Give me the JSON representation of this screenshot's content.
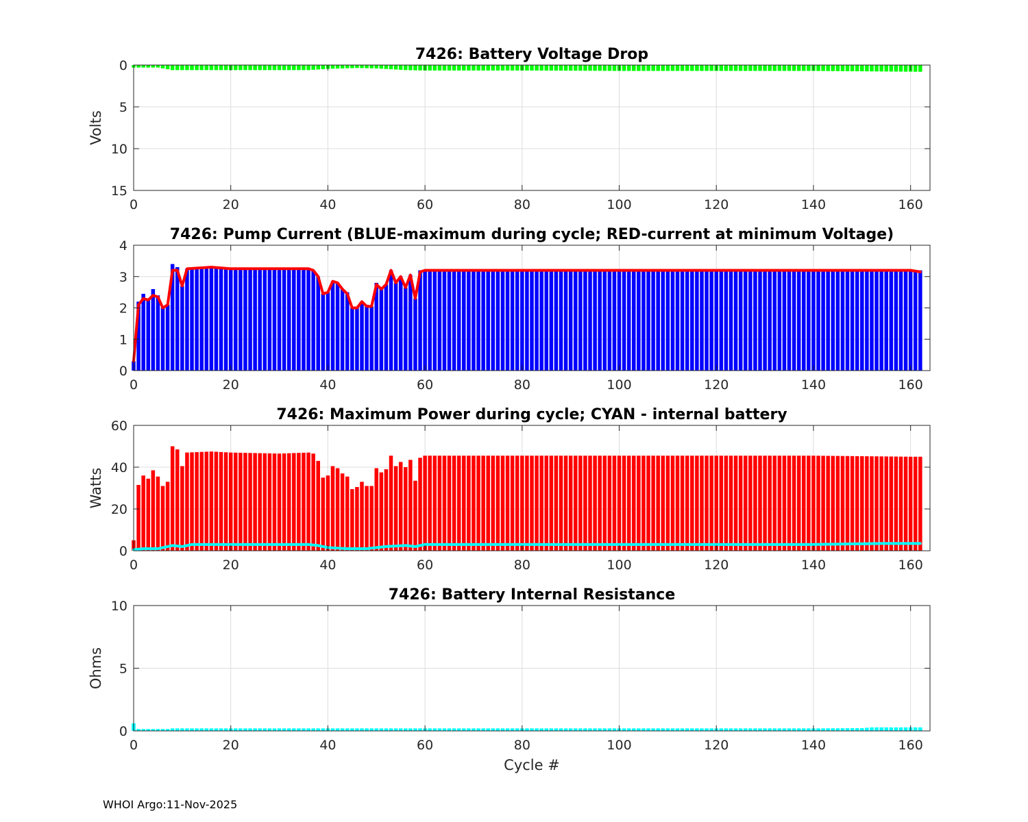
{
  "footer": "WHOI Argo:11-Nov-2025",
  "chart_data": [
    {
      "type": "bar",
      "title": "7426: Battery Voltage Drop",
      "xlabel": "",
      "ylabel": "Volts",
      "xlim": [
        0,
        164
      ],
      "ylim": [
        0,
        15
      ],
      "y_reversed": true,
      "xticks": [
        0,
        20,
        40,
        60,
        80,
        100,
        120,
        140,
        160
      ],
      "yticks": [
        0,
        5,
        10,
        15
      ],
      "grid": true,
      "colors": {
        "bars": "#00ff00"
      },
      "series": [
        {
          "kind": "bar",
          "color": "#00ff00",
          "points": [
            [
              0,
              0.3
            ],
            [
              5,
              0.3
            ],
            [
              8,
              0.6
            ],
            [
              10,
              0.6
            ],
            [
              20,
              0.6
            ],
            [
              30,
              0.6
            ],
            [
              36,
              0.6
            ],
            [
              40,
              0.45
            ],
            [
              46,
              0.35
            ],
            [
              50,
              0.4
            ],
            [
              56,
              0.6
            ],
            [
              60,
              0.65
            ],
            [
              80,
              0.65
            ],
            [
              100,
              0.7
            ],
            [
              120,
              0.7
            ],
            [
              140,
              0.7
            ],
            [
              162,
              0.8
            ]
          ]
        }
      ]
    },
    {
      "type": "bar",
      "title": "7426: Pump Current (BLUE-maximum during cycle; RED-current at minimum Voltage)",
      "xlabel": "",
      "ylabel": "",
      "xlim": [
        0,
        164
      ],
      "ylim": [
        0,
        4
      ],
      "xticks": [
        0,
        20,
        40,
        60,
        80,
        100,
        120,
        140,
        160
      ],
      "yticks": [
        0,
        1,
        2,
        3,
        4
      ],
      "grid": true,
      "colors": {
        "bars": "#0000ff",
        "line": "#ff0000"
      },
      "series": [
        {
          "kind": "bar",
          "name": "BLUE-maximum during cycle",
          "color": "#0000ff",
          "points": [
            [
              0,
              0.3
            ],
            [
              1,
              2.2
            ],
            [
              2,
              2.45
            ],
            [
              3,
              2.3
            ],
            [
              4,
              2.6
            ],
            [
              5,
              2.4
            ],
            [
              6,
              2.0
            ],
            [
              7,
              2.1
            ],
            [
              8,
              3.4
            ],
            [
              9,
              3.3
            ],
            [
              10,
              2.7
            ],
            [
              11,
              3.25
            ],
            [
              15,
              3.25
            ],
            [
              16,
              3.3
            ],
            [
              20,
              3.25
            ],
            [
              30,
              3.25
            ],
            [
              35,
              3.25
            ],
            [
              36,
              3.25
            ],
            [
              37,
              3.2
            ],
            [
              38,
              3.0
            ],
            [
              39,
              2.45
            ],
            [
              40,
              2.5
            ],
            [
              41,
              2.85
            ],
            [
              42,
              2.8
            ],
            [
              43,
              2.6
            ],
            [
              44,
              2.5
            ],
            [
              45,
              2.0
            ],
            [
              46,
              2.0
            ],
            [
              47,
              2.2
            ],
            [
              48,
              2.1
            ],
            [
              49,
              2.05
            ],
            [
              50,
              2.8
            ],
            [
              51,
              2.6
            ],
            [
              52,
              2.75
            ],
            [
              53,
              3.2
            ],
            [
              54,
              2.8
            ],
            [
              55,
              3.0
            ],
            [
              56,
              2.65
            ],
            [
              57,
              3.05
            ],
            [
              58,
              2.3
            ],
            [
              59,
              3.2
            ],
            [
              60,
              3.2
            ],
            [
              80,
              3.2
            ],
            [
              100,
              3.2
            ],
            [
              120,
              3.2
            ],
            [
              140,
              3.2
            ],
            [
              162,
              3.2
            ]
          ]
        },
        {
          "kind": "line",
          "name": "RED-current at minimum Voltage",
          "color": "#ff0000",
          "points": [
            [
              0,
              0.3
            ],
            [
              1,
              2.1
            ],
            [
              2,
              2.3
            ],
            [
              3,
              2.25
            ],
            [
              4,
              2.4
            ],
            [
              5,
              2.35
            ],
            [
              6,
              2.0
            ],
            [
              7,
              2.1
            ],
            [
              8,
              3.2
            ],
            [
              9,
              3.2
            ],
            [
              10,
              2.7
            ],
            [
              11,
              3.25
            ],
            [
              16,
              3.3
            ],
            [
              20,
              3.25
            ],
            [
              30,
              3.25
            ],
            [
              36,
              3.25
            ],
            [
              37,
              3.2
            ],
            [
              38,
              3.0
            ],
            [
              39,
              2.45
            ],
            [
              40,
              2.5
            ],
            [
              41,
              2.85
            ],
            [
              42,
              2.8
            ],
            [
              43,
              2.6
            ],
            [
              44,
              2.45
            ],
            [
              45,
              2.0
            ],
            [
              46,
              2.0
            ],
            [
              47,
              2.2
            ],
            [
              48,
              2.05
            ],
            [
              49,
              2.05
            ],
            [
              50,
              2.75
            ],
            [
              51,
              2.6
            ],
            [
              52,
              2.75
            ],
            [
              53,
              3.2
            ],
            [
              54,
              2.8
            ],
            [
              55,
              3.0
            ],
            [
              56,
              2.65
            ],
            [
              57,
              3.05
            ],
            [
              58,
              2.3
            ],
            [
              59,
              3.15
            ],
            [
              60,
              3.2
            ],
            [
              80,
              3.2
            ],
            [
              100,
              3.2
            ],
            [
              120,
              3.2
            ],
            [
              140,
              3.2
            ],
            [
              160,
              3.2
            ],
            [
              162,
              3.15
            ]
          ]
        }
      ]
    },
    {
      "type": "bar",
      "title": "7426: Maximum Power during cycle; CYAN - internal battery",
      "xlabel": "",
      "ylabel": "Watts",
      "xlim": [
        0,
        164
      ],
      "ylim": [
        0,
        60
      ],
      "xticks": [
        0,
        20,
        40,
        60,
        80,
        100,
        120,
        140,
        160
      ],
      "yticks": [
        0,
        20,
        40,
        60
      ],
      "grid": true,
      "colors": {
        "bars": "#ff0000",
        "line": "#00ffff"
      },
      "series": [
        {
          "kind": "bar",
          "name": "Maximum Power during cycle",
          "color": "#ff0000",
          "points": [
            [
              0,
              5
            ],
            [
              1,
              31.5
            ],
            [
              2,
              36
            ],
            [
              3,
              34.5
            ],
            [
              4,
              38.5
            ],
            [
              5,
              35.5
            ],
            [
              6,
              31
            ],
            [
              7,
              33
            ],
            [
              8,
              50
            ],
            [
              9,
              48.5
            ],
            [
              10,
              40.5
            ],
            [
              11,
              47
            ],
            [
              16,
              47.5
            ],
            [
              20,
              47
            ],
            [
              30,
              46.5
            ],
            [
              36,
              47
            ],
            [
              37,
              46.5
            ],
            [
              38,
              43
            ],
            [
              39,
              35
            ],
            [
              40,
              36
            ],
            [
              41,
              40.5
            ],
            [
              42,
              39.5
            ],
            [
              43,
              37
            ],
            [
              44,
              35.5
            ],
            [
              45,
              29.5
            ],
            [
              46,
              30.5
            ],
            [
              47,
              33
            ],
            [
              48,
              31
            ],
            [
              49,
              31
            ],
            [
              50,
              39.5
            ],
            [
              51,
              37.5
            ],
            [
              52,
              39
            ],
            [
              53,
              45.5
            ],
            [
              54,
              40.5
            ],
            [
              55,
              42.5
            ],
            [
              56,
              40
            ],
            [
              57,
              43.5
            ],
            [
              58,
              33.5
            ],
            [
              59,
              44.5
            ],
            [
              60,
              45.5
            ],
            [
              80,
              45.5
            ],
            [
              100,
              45.5
            ],
            [
              120,
              45.5
            ],
            [
              140,
              45.5
            ],
            [
              160,
              45
            ],
            [
              162,
              45
            ]
          ]
        },
        {
          "kind": "line",
          "name": "CYAN - internal battery",
          "color": "#00ffff",
          "points": [
            [
              0,
              0.5
            ],
            [
              2,
              1
            ],
            [
              5,
              1
            ],
            [
              8,
              2.5
            ],
            [
              10,
              2
            ],
            [
              12,
              3
            ],
            [
              20,
              3
            ],
            [
              36,
              3
            ],
            [
              38,
              2.5
            ],
            [
              40,
              1.5
            ],
            [
              44,
              1
            ],
            [
              48,
              1
            ],
            [
              52,
              2
            ],
            [
              56,
              2.5
            ],
            [
              58,
              2
            ],
            [
              60,
              3
            ],
            [
              80,
              3
            ],
            [
              100,
              3
            ],
            [
              120,
              3
            ],
            [
              140,
              3
            ],
            [
              155,
              3.5
            ],
            [
              162,
              3.5
            ]
          ]
        }
      ]
    },
    {
      "type": "bar",
      "title": "7426: Battery Internal Resistance",
      "xlabel": "Cycle #",
      "ylabel": "Ohms",
      "xlim": [
        0,
        164
      ],
      "ylim": [
        0,
        10
      ],
      "xticks": [
        0,
        20,
        40,
        60,
        80,
        100,
        120,
        140,
        160
      ],
      "yticks": [
        0,
        5,
        10
      ],
      "grid": true,
      "colors": {
        "bars": "#00ffff"
      },
      "series": [
        {
          "kind": "bar",
          "color": "#00ffff",
          "points": [
            [
              0,
              0.6
            ],
            [
              1,
              0.15
            ],
            [
              7,
              0.15
            ],
            [
              8,
              0.2
            ],
            [
              40,
              0.2
            ],
            [
              60,
              0.2
            ],
            [
              100,
              0.2
            ],
            [
              140,
              0.2
            ],
            [
              150,
              0.22
            ],
            [
              152,
              0.28
            ],
            [
              162,
              0.28
            ]
          ]
        }
      ]
    }
  ]
}
